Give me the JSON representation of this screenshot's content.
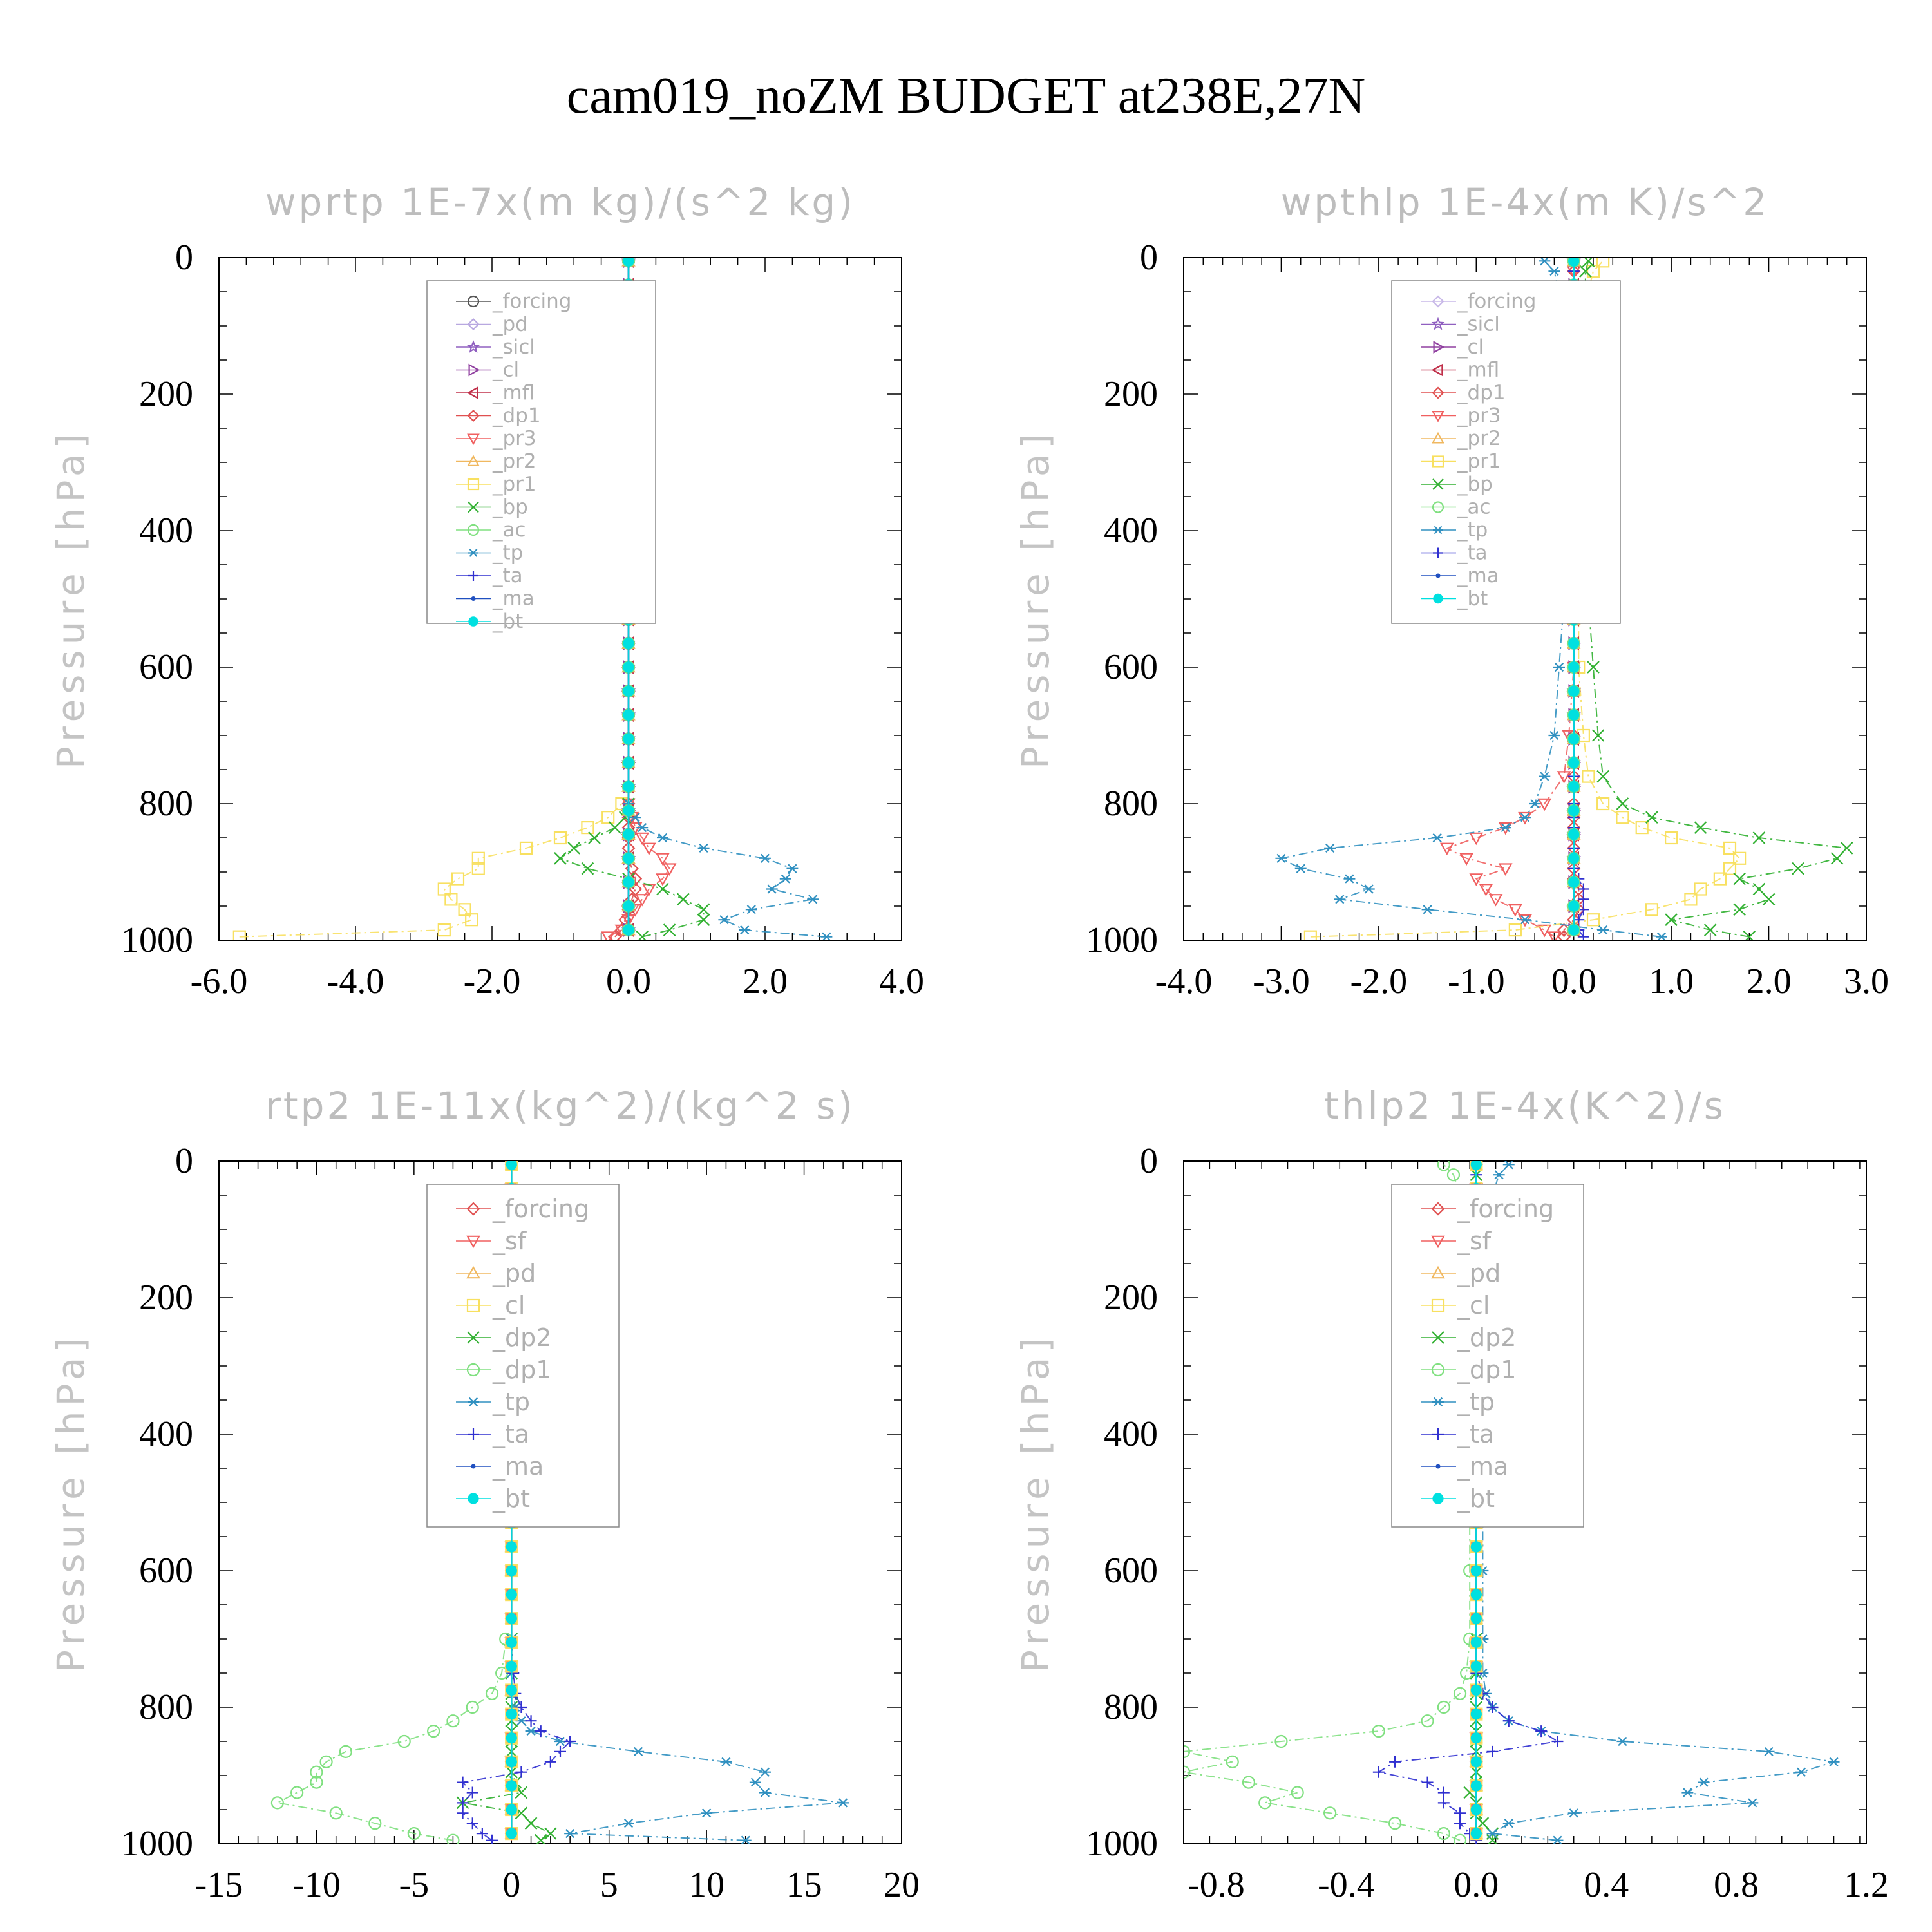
{
  "figure": {
    "title": "cam019_noZM  BUDGET at238E,27N"
  },
  "chart_data": [
    {
      "type": "line",
      "title": "wprtp  1E-7x(m kg)/(s^2 kg)",
      "ylabel": "Pressure [hPa]",
      "xlim": [
        -6.0,
        4.0
      ],
      "ylim": [
        1000,
        0
      ],
      "xticks": [
        "-6.0",
        "-4.0",
        "-2.0",
        "0.0",
        "2.0",
        "4.0"
      ],
      "xtick_values": [
        -6,
        -4,
        -2,
        0,
        2,
        4
      ],
      "yticks": [
        "0",
        "200",
        "400",
        "600",
        "800",
        "1000"
      ],
      "ytick_values": [
        0,
        200,
        400,
        600,
        800,
        1000
      ],
      "legend_position": "upper-right",
      "y": [
        995,
        985,
        970,
        955,
        940,
        925,
        910,
        895,
        880,
        865,
        850,
        835,
        820,
        800
      ],
      "series": [
        {
          "name": "_forcing",
          "color": "#555555",
          "marker": "circle",
          "constant": 0
        },
        {
          "name": "_pd",
          "color": "#b8a8e0",
          "marker": "diamond",
          "constant": 0
        },
        {
          "name": "_sicl",
          "color": "#9060c0",
          "marker": "star",
          "constant": 0
        },
        {
          "name": "_cl",
          "color": "#9040a0",
          "marker": "tri-right",
          "constant": 0
        },
        {
          "name": "_mfl",
          "color": "#c0304a",
          "marker": "tri-left",
          "constant": 0
        },
        {
          "name": "_dp1",
          "color": "#e05050",
          "marker": "diamond",
          "values": [
            -0.2,
            -0.1,
            -0.05,
            0,
            0.05,
            0.1,
            0.1,
            0.05,
            0,
            0,
            0,
            0,
            0,
            0
          ]
        },
        {
          "name": "_pr3",
          "color": "#f06060",
          "marker": "tri-down",
          "values": [
            -0.3,
            -0.1,
            0,
            0.1,
            0.2,
            0.3,
            0.5,
            0.6,
            0.5,
            0.3,
            0.2,
            0.1,
            0.05,
            0
          ]
        },
        {
          "name": "_pr2",
          "color": "#f0b860",
          "marker": "tri-up",
          "constant": 0
        },
        {
          "name": "_pr1",
          "color": "#f8e060",
          "marker": "square",
          "values": [
            -5.7,
            -2.7,
            -2.3,
            -2.4,
            -2.6,
            -2.7,
            -2.5,
            -2.2,
            -2.2,
            -1.5,
            -1.0,
            -0.6,
            -0.3,
            -0.1
          ]
        },
        {
          "name": "_bp",
          "color": "#30b030",
          "marker": "x",
          "values": [
            0.2,
            0.6,
            1.1,
            1.1,
            0.8,
            0.5,
            0,
            -0.6,
            -1.0,
            -0.8,
            -0.5,
            -0.2,
            -0.05,
            0
          ]
        },
        {
          "name": "_ac",
          "color": "#80e080",
          "marker": "circle",
          "constant": 0
        },
        {
          "name": "_tp",
          "color": "#3090c0",
          "marker": "asterisk",
          "values": [
            2.9,
            1.7,
            1.4,
            1.8,
            2.7,
            2.1,
            2.3,
            2.4,
            2.0,
            1.1,
            0.5,
            0.2,
            0.1,
            0
          ]
        },
        {
          "name": "_ta",
          "color": "#3030d0",
          "marker": "plus",
          "constant": 0
        },
        {
          "name": "_ma",
          "color": "#2050c0",
          "marker": "dot",
          "constant": 0
        },
        {
          "name": "_bt",
          "color": "#00e0e0",
          "marker": "filled-circle",
          "constant": 0
        }
      ]
    },
    {
      "type": "line",
      "title": "wpthlp  1E-4x(m K)/s^2",
      "ylabel": "Pressure [hPa]",
      "xlim": [
        -4.0,
        3.0
      ],
      "ylim": [
        1000,
        0
      ],
      "xticks": [
        "-4.0",
        "-3.0",
        "-2.0",
        "-1.0",
        "0.0",
        "1.0",
        "2.0",
        "3.0"
      ],
      "xtick_values": [
        -4,
        -3,
        -2,
        -1,
        0,
        1,
        2,
        3
      ],
      "yticks": [
        "0",
        "200",
        "400",
        "600",
        "800",
        "1000"
      ],
      "ytick_values": [
        0,
        200,
        400,
        600,
        800,
        1000
      ],
      "legend_position": "upper-right",
      "y": [
        995,
        985,
        970,
        955,
        940,
        925,
        910,
        895,
        880,
        865,
        850,
        835,
        820,
        800,
        760,
        700,
        600,
        500,
        400,
        300,
        200,
        100,
        50,
        20,
        5
      ],
      "series": [
        {
          "name": "_forcing",
          "color": "#c8b8e8",
          "marker": "diamond",
          "constant": 0
        },
        {
          "name": "_sicl",
          "color": "#9060c0",
          "marker": "star",
          "constant": 0
        },
        {
          "name": "_cl",
          "color": "#9040a0",
          "marker": "tri-right",
          "constant": 0
        },
        {
          "name": "_mfl",
          "color": "#c0304a",
          "marker": "tri-left",
          "constant": 0
        },
        {
          "name": "_dp1",
          "color": "#e05050",
          "marker": "diamond",
          "values": [
            -0.1,
            -0.1,
            0,
            0.05,
            0.05,
            0.05,
            0,
            0,
            0,
            0,
            0,
            0,
            0,
            0,
            0,
            0,
            0,
            0,
            0,
            0,
            0,
            0,
            0,
            0,
            0
          ]
        },
        {
          "name": "_pr3",
          "color": "#f06060",
          "marker": "tri-down",
          "values": [
            -0.2,
            -0.3,
            -0.5,
            -0.6,
            -0.8,
            -0.9,
            -1.0,
            -0.7,
            -1.1,
            -1.3,
            -1.0,
            -0.7,
            -0.5,
            -0.3,
            -0.1,
            -0.05,
            0,
            0,
            0,
            0,
            0,
            0,
            0,
            0,
            0
          ]
        },
        {
          "name": "_pr2",
          "color": "#f0b860",
          "marker": "tri-up",
          "constant": 0
        },
        {
          "name": "_pr1",
          "color": "#f8e060",
          "marker": "square",
          "values": [
            -2.7,
            -0.6,
            0.2,
            0.8,
            1.2,
            1.3,
            1.5,
            1.6,
            1.7,
            1.6,
            1.0,
            0.7,
            0.5,
            0.3,
            0.15,
            0.1,
            0.05,
            0.05,
            0.05,
            0.05,
            0.05,
            0.1,
            0.15,
            0.2,
            0.3
          ]
        },
        {
          "name": "_bp",
          "color": "#30b030",
          "marker": "x",
          "values": [
            1.8,
            1.4,
            1.0,
            1.7,
            2.0,
            1.9,
            1.7,
            2.3,
            2.7,
            2.8,
            1.9,
            1.3,
            0.8,
            0.5,
            0.3,
            0.25,
            0.2,
            0.15,
            0.12,
            0.1,
            0.1,
            0.1,
            0.12,
            0.12,
            0.15
          ]
        },
        {
          "name": "_ac",
          "color": "#80e080",
          "marker": "circle",
          "constant": 0
        },
        {
          "name": "_tp",
          "color": "#3090c0",
          "marker": "asterisk",
          "values": [
            0.9,
            0.3,
            -0.5,
            -1.5,
            -2.4,
            -2.1,
            -2.3,
            -2.8,
            -3.0,
            -2.5,
            -1.4,
            -0.7,
            -0.5,
            -0.4,
            -0.3,
            -0.2,
            -0.15,
            -0.1,
            -0.1,
            -0.1,
            -0.1,
            -0.1,
            -0.15,
            -0.2,
            -0.3
          ]
        },
        {
          "name": "_ta",
          "color": "#3030d0",
          "marker": "plus",
          "values": [
            0.1,
            0.05,
            0.05,
            0.1,
            0.1,
            0.1,
            0.05,
            0,
            0,
            0,
            0,
            0,
            0,
            0,
            0,
            0,
            0,
            0,
            0,
            0,
            0,
            0,
            0,
            0,
            0
          ]
        },
        {
          "name": "_ma",
          "color": "#2050c0",
          "marker": "dot",
          "constant": 0
        },
        {
          "name": "_bt",
          "color": "#00e0e0",
          "marker": "filled-circle",
          "constant": 0
        }
      ]
    },
    {
      "type": "line",
      "title": "rtp2  1E-11x(kg^2)/(kg^2 s)",
      "ylabel": "Pressure [hPa]",
      "xlim": [
        -15,
        20
      ],
      "ylim": [
        1000,
        0
      ],
      "xticks": [
        "-15",
        "-10",
        "-5",
        "0",
        "5",
        "10",
        "15",
        "20"
      ],
      "xtick_values": [
        -15,
        -10,
        -5,
        0,
        5,
        10,
        15,
        20
      ],
      "yticks": [
        "0",
        "200",
        "400",
        "600",
        "800",
        "1000"
      ],
      "ytick_values": [
        0,
        200,
        400,
        600,
        800,
        1000
      ],
      "legend_position": "upper-right",
      "y": [
        995,
        985,
        970,
        955,
        940,
        925,
        910,
        895,
        880,
        865,
        850,
        835,
        820,
        800,
        780,
        750,
        700
      ],
      "series": [
        {
          "name": "_forcing",
          "color": "#e05050",
          "marker": "diamond",
          "constant": 0
        },
        {
          "name": "_sf",
          "color": "#f06060",
          "marker": "tri-down",
          "constant": 0
        },
        {
          "name": "_pd",
          "color": "#f0b860",
          "marker": "tri-up",
          "constant": 0
        },
        {
          "name": "_cl",
          "color": "#f8e060",
          "marker": "square",
          "constant": 0
        },
        {
          "name": "_dp2",
          "color": "#30b030",
          "marker": "x",
          "values": [
            1.5,
            2.0,
            1.0,
            0.5,
            -2.5,
            0.5,
            0.2,
            0,
            0,
            0,
            0,
            0,
            0,
            0,
            0,
            0,
            0
          ]
        },
        {
          "name": "_dp1",
          "color": "#80e080",
          "marker": "circle",
          "values": [
            -3.0,
            -5.0,
            -7.0,
            -9.0,
            -12.0,
            -11.0,
            -10.0,
            -10.0,
            -9.5,
            -8.5,
            -5.5,
            -4.0,
            -3.0,
            -2.0,
            -1.0,
            -0.5,
            -0.3
          ]
        },
        {
          "name": "_tp",
          "color": "#3090c0",
          "marker": "asterisk",
          "values": [
            12.0,
            3.0,
            6.0,
            10.0,
            17.0,
            13.0,
            12.5,
            13.0,
            11.0,
            6.5,
            2.5,
            1.0,
            0.5,
            0.2,
            0.1,
            0,
            0
          ]
        },
        {
          "name": "_ta",
          "color": "#3030d0",
          "marker": "plus",
          "values": [
            -1.0,
            -1.5,
            -2.0,
            -2.5,
            -2.5,
            -2.0,
            -2.5,
            0.5,
            2.0,
            2.5,
            3.0,
            1.5,
            1.0,
            0.5,
            0.2,
            0.1,
            0
          ]
        },
        {
          "name": "_ma",
          "color": "#2050c0",
          "marker": "dot",
          "constant": 0
        },
        {
          "name": "_bt",
          "color": "#00e0e0",
          "marker": "filled-circle",
          "constant": 0
        }
      ]
    },
    {
      "type": "line",
      "title": "thlp2  1E-4x(K^2)/s",
      "ylabel": "Pressure [hPa]",
      "xlim": [
        -0.9,
        1.2
      ],
      "ylim": [
        1000,
        0
      ],
      "xticks": [
        "-0.8",
        "-0.4",
        "0.0",
        "0.4",
        "0.8",
        "1.2"
      ],
      "xtick_values": [
        -0.8,
        -0.4,
        0,
        0.4,
        0.8,
        1.2
      ],
      "yticks": [
        "0",
        "200",
        "400",
        "600",
        "800",
        "1000"
      ],
      "ytick_values": [
        0,
        200,
        400,
        600,
        800,
        1000
      ],
      "legend_position": "upper-right",
      "y": [
        995,
        985,
        970,
        955,
        940,
        925,
        910,
        895,
        880,
        865,
        850,
        835,
        820,
        800,
        780,
        750,
        700,
        600,
        400,
        200,
        100,
        50,
        20,
        5
      ],
      "series": [
        {
          "name": "_forcing",
          "color": "#e05050",
          "marker": "diamond",
          "constant": 0
        },
        {
          "name": "_sf",
          "color": "#f06060",
          "marker": "tri-down",
          "constant": 0
        },
        {
          "name": "_pd",
          "color": "#f0b860",
          "marker": "tri-up",
          "constant": 0
        },
        {
          "name": "_cl",
          "color": "#f8e060",
          "marker": "square",
          "constant": 0
        },
        {
          "name": "_dp2",
          "color": "#30b030",
          "marker": "x",
          "values": [
            0.05,
            0.05,
            0.02,
            0,
            0,
            -0.02,
            0,
            0,
            0,
            0,
            0,
            0,
            0,
            0,
            0,
            0,
            0,
            0,
            0,
            0,
            0,
            0,
            0,
            0
          ]
        },
        {
          "name": "_dp1",
          "color": "#80e080",
          "marker": "circle",
          "values": [
            -0.05,
            -0.1,
            -0.25,
            -0.45,
            -0.65,
            -0.55,
            -0.7,
            -0.9,
            -0.75,
            -0.9,
            -0.6,
            -0.3,
            -0.15,
            -0.1,
            -0.05,
            -0.03,
            -0.02,
            -0.02,
            -0.02,
            -0.02,
            -0.03,
            -0.05,
            -0.07,
            -0.1
          ]
        },
        {
          "name": "_tp",
          "color": "#3090c0",
          "marker": "asterisk",
          "values": [
            0.25,
            0.05,
            0.1,
            0.3,
            0.85,
            0.65,
            0.7,
            1.0,
            1.1,
            0.9,
            0.45,
            0.2,
            0.1,
            0.05,
            0.03,
            0.02,
            0.02,
            0.02,
            0.02,
            0.02,
            0.03,
            0.05,
            0.07,
            0.1
          ]
        },
        {
          "name": "_ta",
          "color": "#3030d0",
          "marker": "plus",
          "values": [
            0,
            -0.02,
            -0.05,
            -0.05,
            -0.1,
            -0.1,
            -0.15,
            -0.3,
            -0.25,
            0.05,
            0.25,
            0.2,
            0.1,
            0.05,
            0.02,
            0,
            0,
            0,
            0,
            0,
            0,
            0,
            0,
            0
          ]
        },
        {
          "name": "_ma",
          "color": "#2050c0",
          "marker": "dot",
          "constant": 0
        },
        {
          "name": "_bt",
          "color": "#00e0e0",
          "marker": "filled-circle",
          "constant": 0
        }
      ]
    }
  ]
}
